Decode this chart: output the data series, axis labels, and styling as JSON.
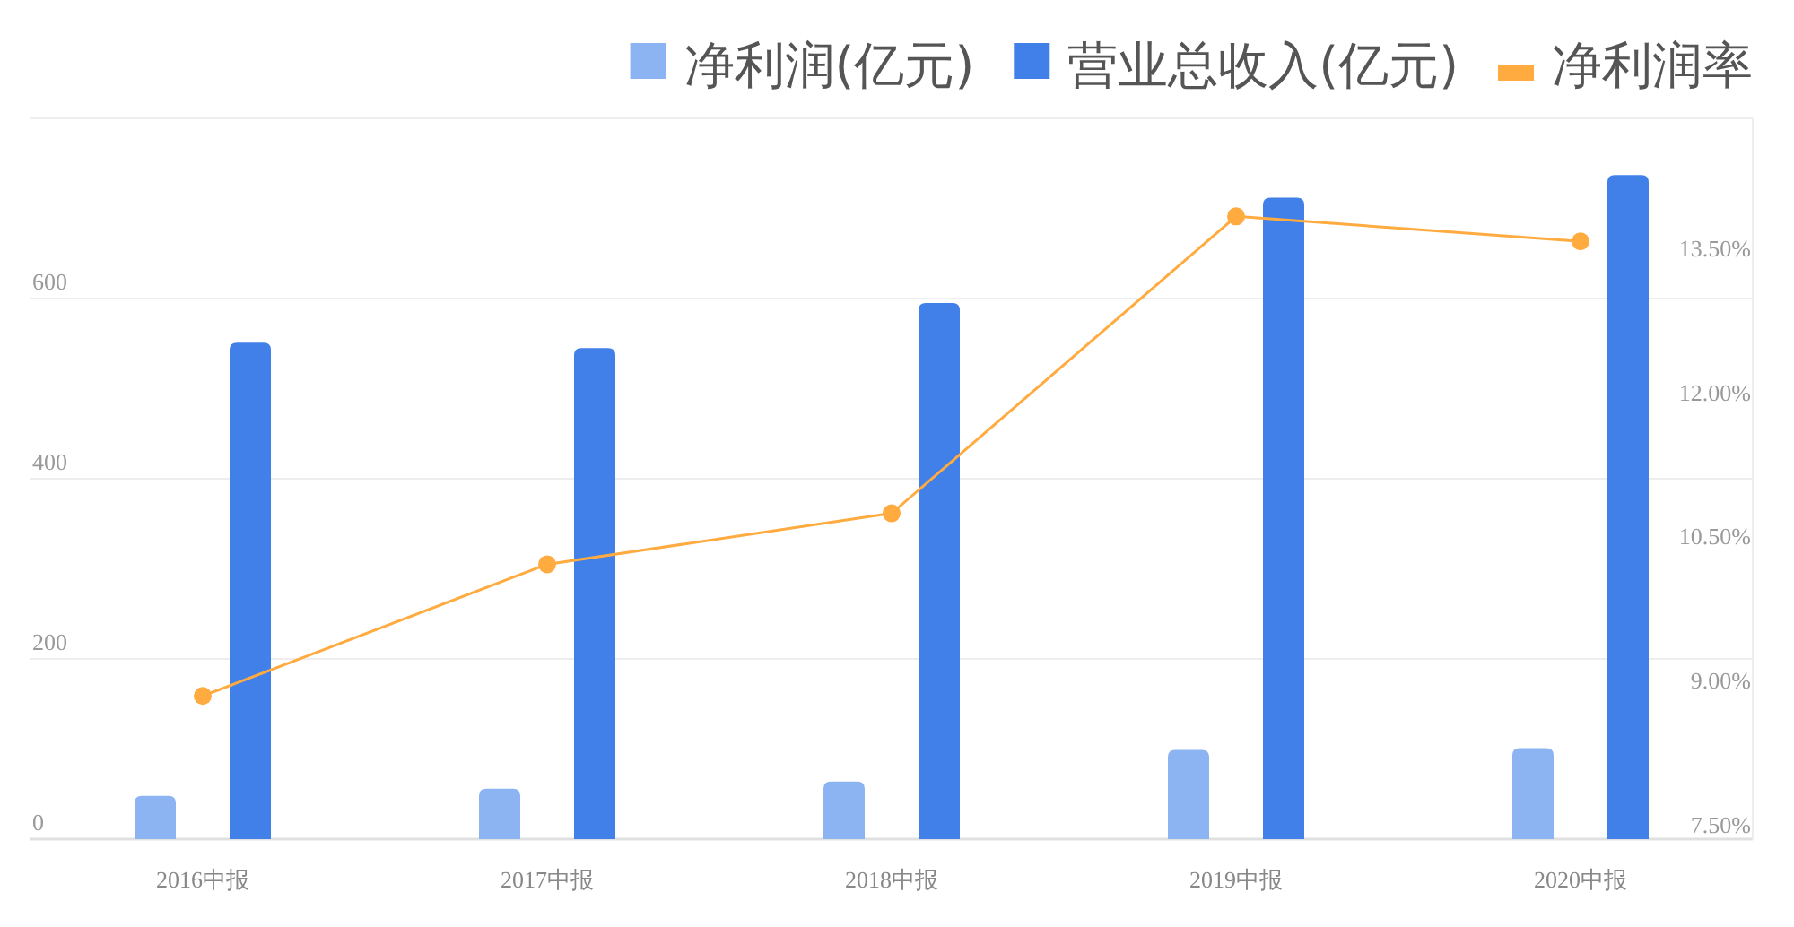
{
  "chart_data": {
    "type": "bar",
    "categories": [
      "2016中报",
      "2017中报",
      "2018中报",
      "2019中报",
      "2020中报"
    ],
    "series": [
      {
        "name": "净利润(亿元)",
        "color": "#8cb4f2",
        "values": [
          48,
          56,
          64,
          99,
          101
        ]
      },
      {
        "name": "营业总收入(亿元)",
        "color": "#4080e8",
        "values": [
          551,
          545,
          595,
          712,
          737
        ]
      },
      {
        "name": "净利润率",
        "type": "line",
        "axis": "y2",
        "color": "#ffab40",
        "values": [
          8.84,
          10.21,
          10.74,
          13.83,
          13.57
        ]
      }
    ],
    "ylim": [
      0,
      800
    ],
    "yticks": [
      0,
      200,
      400,
      600,
      {
        "value": 800,
        "label": null
      }
    ],
    "y2lim": [
      7.35,
      14.85
    ],
    "y2ticks": [
      {
        "value": 7.5,
        "label": "7.50%"
      },
      {
        "value": 9,
        "label": "9.00%"
      },
      {
        "value": 10.5,
        "label": "10.50%"
      },
      {
        "value": 12,
        "label": "12.00%"
      },
      {
        "value": 13.5,
        "label": "13.50%"
      }
    ],
    "grid": "y",
    "legend": "top right",
    "marker": "circle",
    "line_style": "solid"
  }
}
